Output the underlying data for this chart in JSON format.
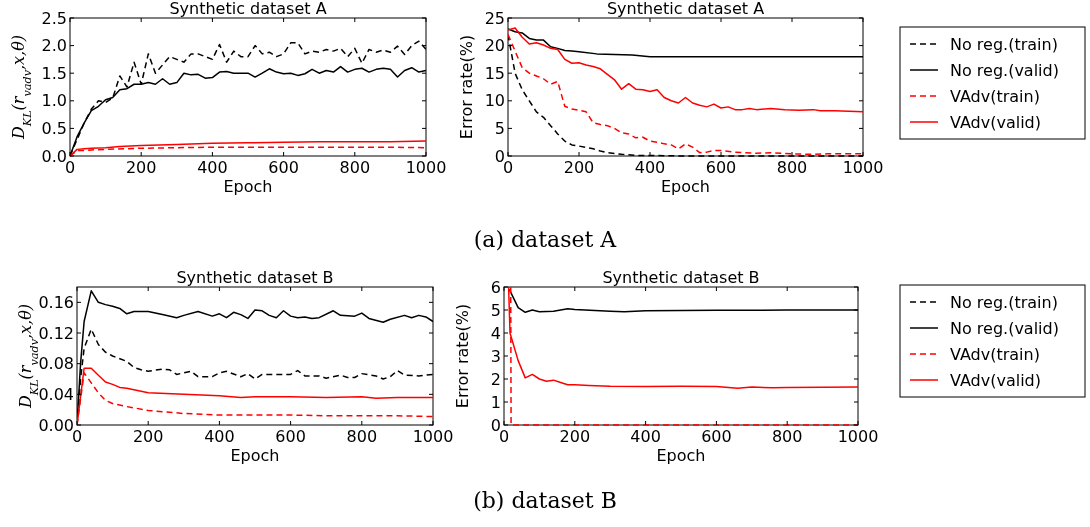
{
  "chart_data": [
    {
      "type": "line",
      "title": "Synthetic dataset A",
      "xlabel": "Epoch",
      "ylabel": "D$_{KL}$(r$_{vadv}$,x,θ)",
      "xlim": [
        0,
        1000
      ],
      "xticks": [
        0,
        200,
        400,
        600,
        800,
        1000
      ],
      "ylim": [
        0,
        2.5
      ],
      "yticks": [
        {
          "value": 0,
          "label": "0.0"
        },
        0.5,
        {
          "value": 1,
          "label": "1.0"
        },
        1.5,
        {
          "value": 2,
          "label": "2.0"
        },
        2.5
      ],
      "series": [
        {
          "color": "#000000",
          "line_style": "dashed",
          "x": [
            0,
            20,
            40,
            60,
            80,
            100,
            120,
            140,
            160,
            180,
            200,
            220,
            240,
            260,
            280,
            300,
            320,
            340,
            360,
            380,
            400,
            420,
            440,
            460,
            480,
            500,
            520,
            540,
            560,
            580,
            600,
            620,
            640,
            660,
            680,
            700,
            720,
            740,
            760,
            780,
            800,
            820,
            840,
            860,
            880,
            900,
            920,
            940,
            960,
            980,
            1000
          ],
          "values": [
            0,
            0.3,
            0.6,
            0.85,
            1.0,
            0.97,
            1.05,
            1.45,
            1.25,
            1.7,
            1.3,
            1.85,
            1.5,
            1.65,
            1.8,
            1.75,
            1.7,
            1.85,
            1.85,
            1.8,
            1.75,
            2.02,
            1.7,
            1.9,
            1.8,
            1.8,
            2.0,
            1.85,
            1.88,
            1.8,
            1.85,
            2.05,
            2.05,
            1.85,
            1.9,
            1.88,
            1.93,
            1.9,
            1.95,
            1.8,
            1.95,
            1.68,
            1.93,
            1.88,
            1.92,
            1.88,
            1.99,
            1.84,
            2.0,
            2.08,
            1.93
          ]
        },
        {
          "color": "#000000",
          "line_style": "solid",
          "x": [
            0,
            20,
            40,
            60,
            80,
            100,
            120,
            140,
            160,
            180,
            200,
            220,
            240,
            260,
            280,
            300,
            320,
            340,
            360,
            380,
            400,
            420,
            440,
            460,
            480,
            500,
            520,
            540,
            560,
            580,
            600,
            620,
            640,
            660,
            680,
            700,
            720,
            740,
            760,
            780,
            800,
            820,
            840,
            860,
            880,
            900,
            920,
            940,
            960,
            980,
            1000
          ],
          "values": [
            0,
            0.35,
            0.6,
            0.82,
            0.9,
            1.02,
            1.06,
            1.2,
            1.22,
            1.3,
            1.3,
            1.33,
            1.3,
            1.4,
            1.3,
            1.33,
            1.5,
            1.47,
            1.48,
            1.41,
            1.42,
            1.52,
            1.53,
            1.5,
            1.5,
            1.5,
            1.43,
            1.5,
            1.58,
            1.52,
            1.49,
            1.5,
            1.46,
            1.49,
            1.57,
            1.5,
            1.55,
            1.52,
            1.62,
            1.52,
            1.57,
            1.59,
            1.52,
            1.57,
            1.59,
            1.57,
            1.43,
            1.55,
            1.6,
            1.52,
            1.55
          ]
        },
        {
          "color": "#ff0000",
          "line_style": "dashed",
          "x": [
            0,
            20,
            40,
            60,
            100,
            200,
            300,
            400,
            500,
            600,
            700,
            800,
            900,
            1000
          ],
          "values": [
            0,
            0.1,
            0.1,
            0.11,
            0.12,
            0.14,
            0.15,
            0.16,
            0.16,
            0.16,
            0.16,
            0.16,
            0.16,
            0.15
          ]
        },
        {
          "color": "#ff0000",
          "line_style": "solid",
          "x": [
            0,
            20,
            40,
            60,
            100,
            140,
            200,
            300,
            400,
            500,
            600,
            700,
            800,
            900,
            1000
          ],
          "values": [
            0,
            0.12,
            0.13,
            0.14,
            0.15,
            0.17,
            0.19,
            0.21,
            0.23,
            0.24,
            0.25,
            0.26,
            0.26,
            0.26,
            0.27
          ]
        }
      ],
      "annotations": [
        "(a) dataset A"
      ]
    },
    {
      "type": "line",
      "title": "Synthetic dataset A",
      "xlabel": "Epoch",
      "ylabel": "Error rate(%)",
      "xlim": [
        0,
        1000
      ],
      "xticks": [
        0,
        200,
        400,
        600,
        800,
        1000
      ],
      "ylim": [
        0,
        25
      ],
      "yticks": [
        0,
        5,
        10,
        15,
        20,
        25
      ],
      "legend": "right",
      "series": [
        {
          "name": "No reg.(train)",
          "color": "#000000",
          "line_style": "dashed",
          "x": [
            0,
            20,
            40,
            60,
            80,
            100,
            120,
            140,
            160,
            180,
            200,
            240,
            260,
            280,
            320,
            360,
            400,
            500,
            1000
          ],
          "values": [
            22,
            15,
            12,
            10,
            8,
            7,
            5.5,
            4,
            2.7,
            2,
            1.8,
            1.3,
            0.9,
            0.6,
            0.3,
            0.1,
            0.1,
            0,
            0
          ]
        },
        {
          "name": "No reg.(valid)",
          "color": "#000000",
          "line_style": "solid",
          "x": [
            0,
            20,
            40,
            60,
            80,
            100,
            120,
            140,
            160,
            180,
            200,
            250,
            300,
            350,
            400,
            450,
            500,
            1000
          ],
          "values": [
            23,
            22.5,
            22.3,
            21.3,
            21,
            21,
            19.8,
            19.5,
            19.1,
            19,
            18.9,
            18.5,
            18.4,
            18.3,
            18,
            18,
            18,
            18
          ]
        },
        {
          "name": "VAdv(train)",
          "color": "#ff0000",
          "line_style": "dashed",
          "x": [
            0,
            20,
            40,
            60,
            80,
            100,
            120,
            140,
            160,
            180,
            200,
            220,
            240,
            260,
            280,
            300,
            320,
            340,
            360,
            380,
            400,
            420,
            440,
            460,
            480,
            500,
            520,
            540,
            560,
            580,
            600,
            640,
            700,
            740,
            800,
            860,
            900,
            1000
          ],
          "values": [
            22,
            19,
            16,
            15,
            14.5,
            14,
            13,
            13.5,
            9,
            8.5,
            8.3,
            8,
            6,
            5.7,
            5.5,
            5,
            4.2,
            4,
            3.3,
            3.4,
            2.7,
            2.5,
            2.2,
            2,
            1.3,
            2.2,
            1.6,
            0.6,
            0.7,
            1,
            1,
            0.7,
            0.5,
            0.6,
            0.4,
            0.3,
            0.4,
            0.4
          ]
        },
        {
          "name": "VAdv(valid)",
          "color": "#ff0000",
          "line_style": "solid",
          "x": [
            0,
            20,
            40,
            60,
            80,
            100,
            120,
            140,
            160,
            180,
            200,
            220,
            240,
            260,
            280,
            300,
            320,
            340,
            360,
            380,
            400,
            420,
            440,
            460,
            480,
            500,
            520,
            540,
            560,
            580,
            600,
            620,
            640,
            660,
            680,
            700,
            740,
            780,
            820,
            860,
            880,
            920,
            960,
            1000
          ],
          "values": [
            22.8,
            23.2,
            21.5,
            20.3,
            20.5,
            20.1,
            19.5,
            19.3,
            17.5,
            16.8,
            16.9,
            16.5,
            16.2,
            15.8,
            14.8,
            13.8,
            12.1,
            13.1,
            12.1,
            12,
            11.7,
            12,
            10.6,
            10,
            9.6,
            10.6,
            9.6,
            9.2,
            8.9,
            9.4,
            8.7,
            8.9,
            8.4,
            8.4,
            8.6,
            8.4,
            8.6,
            8.4,
            8.3,
            8.4,
            8.2,
            8.2,
            8.1,
            8.0
          ]
        }
      ]
    },
    {
      "type": "line",
      "title": "Synthetic dataset B",
      "xlabel": "Epoch",
      "ylabel": "D$_{KL}$(r$_{vadv}$,x,θ)",
      "xlim": [
        0,
        1000
      ],
      "xticks": [
        0,
        200,
        400,
        600,
        800,
        1000
      ],
      "ylim": [
        0,
        0.18
      ],
      "yticks": [
        {
          "value": 0,
          "label": "0.00"
        },
        0.04,
        0.08,
        0.12,
        0.16
      ],
      "series": [
        {
          "color": "#000000",
          "line_style": "dashed",
          "x": [
            0,
            10,
            20,
            40,
            60,
            80,
            100,
            140,
            160,
            180,
            200,
            240,
            260,
            280,
            320,
            340,
            380,
            400,
            420,
            460,
            480,
            500,
            520,
            600,
            620,
            640,
            680,
            700,
            740,
            760,
            780,
            800,
            840,
            860,
            880,
            900,
            920,
            960,
            1000
          ],
          "values": [
            0,
            0.06,
            0.1,
            0.125,
            0.105,
            0.095,
            0.09,
            0.083,
            0.075,
            0.072,
            0.07,
            0.073,
            0.072,
            0.066,
            0.07,
            0.063,
            0.063,
            0.068,
            0.07,
            0.063,
            0.067,
            0.06,
            0.066,
            0.066,
            0.071,
            0.064,
            0.064,
            0.061,
            0.065,
            0.062,
            0.062,
            0.067,
            0.064,
            0.06,
            0.063,
            0.071,
            0.065,
            0.064,
            0.066
          ]
        },
        {
          "color": "#000000",
          "line_style": "solid",
          "x": [
            0,
            10,
            20,
            40,
            60,
            80,
            100,
            120,
            140,
            160,
            200,
            240,
            280,
            300,
            340,
            380,
            400,
            420,
            440,
            460,
            480,
            500,
            520,
            540,
            560,
            580,
            600,
            620,
            640,
            660,
            680,
            720,
            740,
            780,
            800,
            820,
            860,
            880,
            920,
            940,
            960,
            980,
            1000
          ],
          "values": [
            0,
            0.08,
            0.135,
            0.175,
            0.16,
            0.157,
            0.155,
            0.152,
            0.145,
            0.148,
            0.148,
            0.144,
            0.14,
            0.143,
            0.148,
            0.142,
            0.145,
            0.14,
            0.147,
            0.144,
            0.139,
            0.15,
            0.149,
            0.143,
            0.14,
            0.149,
            0.142,
            0.14,
            0.141,
            0.139,
            0.14,
            0.149,
            0.143,
            0.142,
            0.146,
            0.139,
            0.134,
            0.138,
            0.143,
            0.14,
            0.143,
            0.141,
            0.135
          ]
        },
        {
          "color": "#ff0000",
          "line_style": "dashed",
          "x": [
            0,
            20,
            40,
            60,
            80,
            100,
            140,
            200,
            300,
            400,
            500,
            600,
            700,
            800,
            900,
            1000
          ],
          "values": [
            0,
            0.068,
            0.055,
            0.042,
            0.032,
            0.028,
            0.024,
            0.019,
            0.015,
            0.013,
            0.013,
            0.013,
            0.012,
            0.012,
            0.012,
            0.011
          ]
        },
        {
          "color": "#ff0000",
          "line_style": "solid",
          "x": [
            0,
            20,
            40,
            60,
            80,
            100,
            120,
            140,
            200,
            300,
            400,
            460,
            500,
            600,
            700,
            800,
            840,
            900,
            1000
          ],
          "values": [
            0,
            0.074,
            0.074,
            0.065,
            0.056,
            0.053,
            0.049,
            0.048,
            0.042,
            0.04,
            0.038,
            0.036,
            0.037,
            0.037,
            0.036,
            0.037,
            0.035,
            0.036,
            0.036
          ]
        }
      ],
      "annotations": [
        "(b) dataset B"
      ]
    },
    {
      "type": "line",
      "title": "Synthetic dataset B",
      "xlabel": "Epoch",
      "ylabel": "Error rate(%)",
      "xlim": [
        0,
        1000
      ],
      "xticks": [
        0,
        200,
        400,
        600,
        800,
        1000
      ],
      "ylim": [
        0,
        6
      ],
      "yticks": [
        0,
        1,
        2,
        3,
        4,
        5,
        6
      ],
      "legend": "right",
      "series": [
        {
          "name": "No reg.(train)",
          "color": "#000000",
          "line_style": "dashed"
        },
        {
          "name": "No reg.(valid)",
          "color": "#000000",
          "line_style": "solid",
          "x": [
            15,
            40,
            60,
            80,
            100,
            140,
            180,
            200,
            300,
            340,
            400,
            500,
            600,
            700,
            800,
            1000
          ],
          "values": [
            5.9,
            5.1,
            4.9,
            5,
            4.92,
            4.95,
            5.05,
            5.02,
            4.95,
            4.92,
            4.97,
            4.98,
            4.99,
            4.99,
            5.0,
            5.0
          ]
        },
        {
          "name": "VAdv(train)",
          "color": "#ff0000",
          "line_style": "dashed",
          "x": [
            19,
            20,
            200,
            400,
            600,
            800,
            1000
          ],
          "values": [
            6,
            0,
            0,
            0,
            0,
            0,
            0
          ]
        },
        {
          "name": "VAdv(valid)",
          "color": "#ff0000",
          "line_style": "solid",
          "x": [
            13,
            17,
            40,
            60,
            80,
            100,
            120,
            140,
            160,
            180,
            200,
            240,
            300,
            400,
            500,
            600,
            660,
            700,
            760,
            800,
            1000
          ],
          "values": [
            6,
            4,
            2.8,
            2.05,
            2.2,
            2.0,
            1.9,
            1.95,
            1.85,
            1.75,
            1.75,
            1.72,
            1.68,
            1.67,
            1.68,
            1.67,
            1.6,
            1.65,
            1.62,
            1.63,
            1.65
          ]
        }
      ]
    }
  ]
}
